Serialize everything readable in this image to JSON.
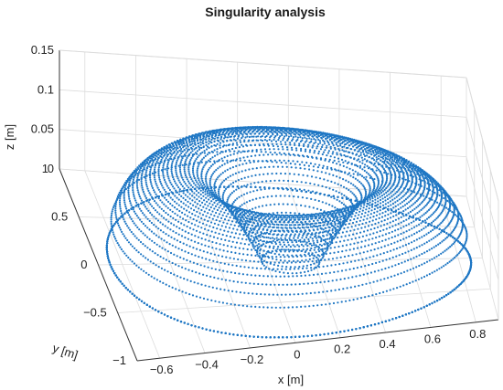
{
  "chart_data": {
    "type": "scatter",
    "title": "Singularity analysis",
    "xlabel": "x [m]",
    "ylabel": "y [m]",
    "zlabel": "z [m]",
    "xlim": [
      -0.7,
      0.9
    ],
    "ylim": [
      -1,
      1
    ],
    "zlim": [
      0,
      0.15
    ],
    "x_ticks": [
      "-0.6",
      "-0.4",
      "-0.2",
      "0",
      "0.2",
      "0.4",
      "0.6",
      "0.8"
    ],
    "y_ticks": [
      "-1",
      "-0.5",
      "0",
      "0.5",
      "1"
    ],
    "z_ticks": [
      "0",
      "0.05",
      "0.1",
      "0.15"
    ],
    "grid": true,
    "marker_color": "#1f77c4",
    "surface": {
      "shape": "torus-like toroidal ring with central funnel",
      "center": {
        "x": 0.1,
        "y": 0.0
      },
      "outer_radius": 0.75,
      "inner_radius": 0.12,
      "z_base": 0.0,
      "z_peak": 0.11,
      "z_inner_bottom": 0.0
    }
  },
  "colors": {
    "points": "#1f77c4",
    "grid": "#dcdcdc",
    "axis": "#333333",
    "background": "#ffffff"
  }
}
